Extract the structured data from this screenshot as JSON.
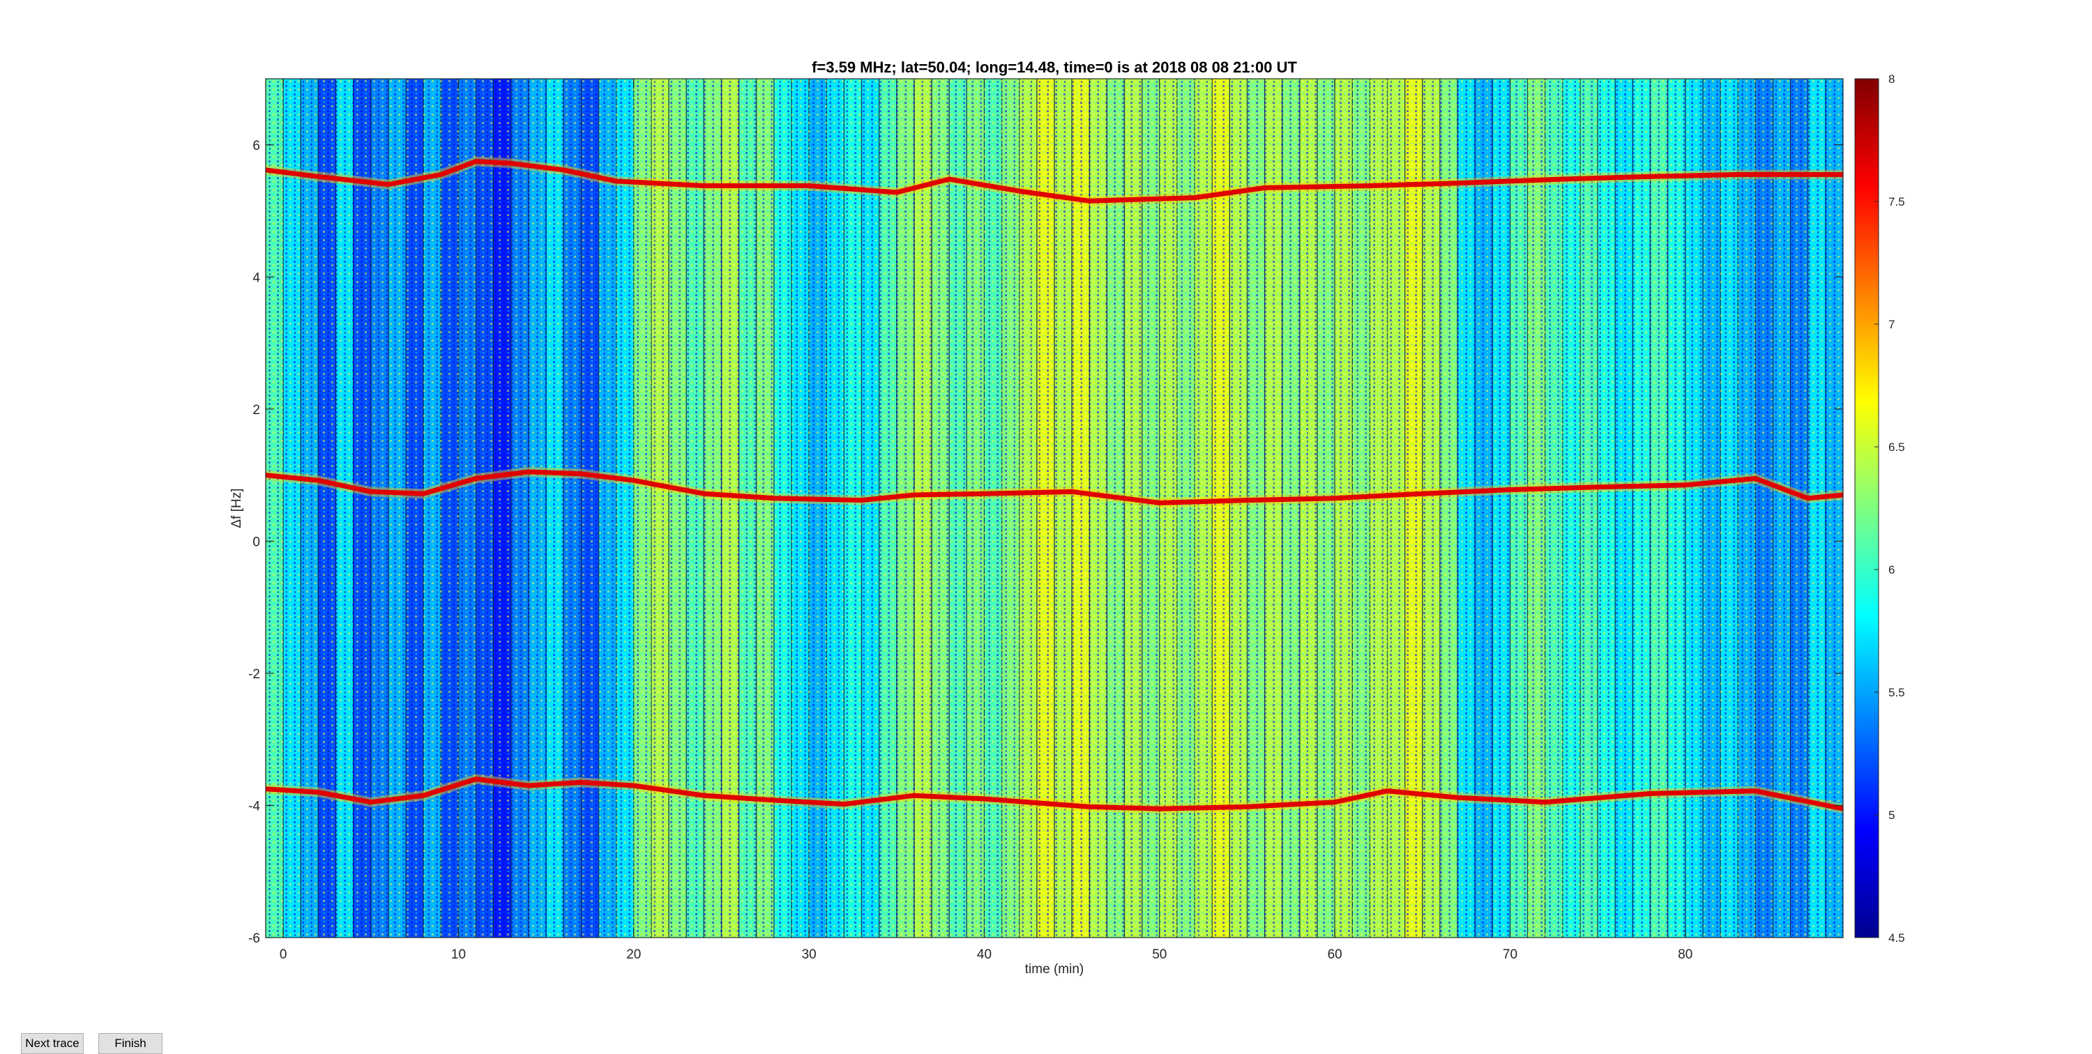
{
  "window": {
    "buttons": {
      "next_trace": "Next trace",
      "finish": "Finish"
    }
  },
  "chart_data": {
    "type": "heatmap",
    "title": "f=3.59 MHz;  lat=50.04; long=14.48, time=0 is at 2018 08 08 21:00 UT",
    "xlabel": "time (min)",
    "ylabel": "Δf [Hz]",
    "xlim": [
      -1,
      89
    ],
    "ylim": [
      -6,
      7
    ],
    "xticks": [
      0,
      10,
      20,
      30,
      40,
      50,
      60,
      70,
      80
    ],
    "yticks": [
      -6,
      -4,
      -2,
      0,
      2,
      4,
      6
    ],
    "colorbar": {
      "clim": [
        4.5,
        8
      ],
      "ticks": [
        4.5,
        5,
        5.5,
        6,
        6.5,
        7,
        7.5,
        8
      ],
      "tick_labels": [
        "4.5",
        "5",
        "5.5",
        "6",
        "6.5",
        "7",
        "7.5",
        "8"
      ],
      "colormap": "jet"
    },
    "traces": [
      {
        "name": "upper",
        "x": [
          -1,
          2,
          6,
          9,
          11,
          13,
          16,
          19,
          24,
          30,
          35,
          38,
          42,
          46,
          52,
          56,
          62,
          67,
          73,
          78,
          83,
          89
        ],
        "y": [
          5.62,
          5.52,
          5.4,
          5.55,
          5.75,
          5.72,
          5.62,
          5.45,
          5.38,
          5.38,
          5.28,
          5.48,
          5.3,
          5.15,
          5.2,
          5.35,
          5.38,
          5.42,
          5.48,
          5.52,
          5.55,
          5.55
        ]
      },
      {
        "name": "middle",
        "x": [
          -1,
          2,
          5,
          8,
          11,
          14,
          17,
          20,
          24,
          28,
          33,
          36,
          40,
          45,
          50,
          55,
          60,
          65,
          70,
          75,
          80,
          84,
          87,
          89
        ],
        "y": [
          1.0,
          0.92,
          0.75,
          0.72,
          0.95,
          1.05,
          1.02,
          0.92,
          0.72,
          0.65,
          0.62,
          0.7,
          0.72,
          0.75,
          0.58,
          0.62,
          0.65,
          0.72,
          0.78,
          0.82,
          0.85,
          0.95,
          0.65,
          0.7
        ]
      },
      {
        "name": "lower",
        "x": [
          -1,
          2,
          5,
          8,
          11,
          14,
          17,
          20,
          24,
          28,
          32,
          36,
          40,
          46,
          50,
          55,
          60,
          63,
          67,
          72,
          78,
          84,
          89
        ],
        "y": [
          -3.75,
          -3.8,
          -3.95,
          -3.85,
          -3.6,
          -3.7,
          -3.65,
          -3.7,
          -3.85,
          -3.92,
          -3.98,
          -3.85,
          -3.9,
          -4.02,
          -4.05,
          -4.02,
          -3.95,
          -3.78,
          -3.88,
          -3.95,
          -3.82,
          -3.78,
          -4.05
        ]
      }
    ],
    "columns": [
      {
        "x": -0.5,
        "level": 0.45
      },
      {
        "x": 0.5,
        "level": 0.35
      },
      {
        "x": 1.5,
        "level": 0.3
      },
      {
        "x": 2.5,
        "level": 0.2
      },
      {
        "x": 3.5,
        "level": 0.35
      },
      {
        "x": 4.5,
        "level": 0.2
      },
      {
        "x": 5.5,
        "level": 0.25
      },
      {
        "x": 6.5,
        "level": 0.3
      },
      {
        "x": 7.5,
        "level": 0.2
      },
      {
        "x": 8.5,
        "level": 0.3
      },
      {
        "x": 9.5,
        "level": 0.2
      },
      {
        "x": 10.5,
        "level": 0.25
      },
      {
        "x": 11.5,
        "level": 0.2
      },
      {
        "x": 12.5,
        "level": 0.15
      },
      {
        "x": 13.5,
        "level": 0.25
      },
      {
        "x": 14.5,
        "level": 0.3
      },
      {
        "x": 15.5,
        "level": 0.35
      },
      {
        "x": 16.5,
        "level": 0.25
      },
      {
        "x": 17.5,
        "level": 0.2
      },
      {
        "x": 18.5,
        "level": 0.3
      },
      {
        "x": 19.5,
        "level": 0.35
      },
      {
        "x": 20.5,
        "level": 0.5
      },
      {
        "x": 21.5,
        "level": 0.55
      },
      {
        "x": 22.5,
        "level": 0.5
      },
      {
        "x": 23.5,
        "level": 0.45
      },
      {
        "x": 24.5,
        "level": 0.5
      },
      {
        "x": 25.5,
        "level": 0.55
      },
      {
        "x": 26.5,
        "level": 0.45
      },
      {
        "x": 27.5,
        "level": 0.5
      },
      {
        "x": 28.5,
        "level": 0.4
      },
      {
        "x": 29.5,
        "level": 0.35
      },
      {
        "x": 30.5,
        "level": 0.3
      },
      {
        "x": 31.5,
        "level": 0.35
      },
      {
        "x": 32.5,
        "level": 0.4
      },
      {
        "x": 33.5,
        "level": 0.35
      },
      {
        "x": 34.5,
        "level": 0.45
      },
      {
        "x": 35.5,
        "level": 0.5
      },
      {
        "x": 36.5,
        "level": 0.55
      },
      {
        "x": 37.5,
        "level": 0.5
      },
      {
        "x": 38.5,
        "level": 0.45
      },
      {
        "x": 39.5,
        "level": 0.5
      },
      {
        "x": 40.5,
        "level": 0.45
      },
      {
        "x": 41.5,
        "level": 0.5
      },
      {
        "x": 42.5,
        "level": 0.55
      },
      {
        "x": 43.5,
        "level": 0.6
      },
      {
        "x": 44.5,
        "level": 0.55
      },
      {
        "x": 45.5,
        "level": 0.6
      },
      {
        "x": 46.5,
        "level": 0.55
      },
      {
        "x": 47.5,
        "level": 0.5
      },
      {
        "x": 48.5,
        "level": 0.55
      },
      {
        "x": 49.5,
        "level": 0.5
      },
      {
        "x": 50.5,
        "level": 0.55
      },
      {
        "x": 51.5,
        "level": 0.5
      },
      {
        "x": 52.5,
        "level": 0.55
      },
      {
        "x": 53.5,
        "level": 0.6
      },
      {
        "x": 54.5,
        "level": 0.55
      },
      {
        "x": 55.5,
        "level": 0.5
      },
      {
        "x": 56.5,
        "level": 0.55
      },
      {
        "x": 57.5,
        "level": 0.5
      },
      {
        "x": 58.5,
        "level": 0.55
      },
      {
        "x": 59.5,
        "level": 0.5
      },
      {
        "x": 60.5,
        "level": 0.55
      },
      {
        "x": 61.5,
        "level": 0.5
      },
      {
        "x": 62.5,
        "level": 0.55
      },
      {
        "x": 63.5,
        "level": 0.55
      },
      {
        "x": 64.5,
        "level": 0.6
      },
      {
        "x": 65.5,
        "level": 0.55
      },
      {
        "x": 66.5,
        "level": 0.5
      },
      {
        "x": 67.5,
        "level": 0.35
      },
      {
        "x": 68.5,
        "level": 0.3
      },
      {
        "x": 69.5,
        "level": 0.35
      },
      {
        "x": 70.5,
        "level": 0.45
      },
      {
        "x": 71.5,
        "level": 0.5
      },
      {
        "x": 72.5,
        "level": 0.45
      },
      {
        "x": 73.5,
        "level": 0.4
      },
      {
        "x": 74.5,
        "level": 0.45
      },
      {
        "x": 75.5,
        "level": 0.4
      },
      {
        "x": 76.5,
        "level": 0.35
      },
      {
        "x": 77.5,
        "level": 0.4
      },
      {
        "x": 78.5,
        "level": 0.45
      },
      {
        "x": 79.5,
        "level": 0.4
      },
      {
        "x": 80.5,
        "level": 0.35
      },
      {
        "x": 81.5,
        "level": 0.3
      },
      {
        "x": 82.5,
        "level": 0.35
      },
      {
        "x": 83.5,
        "level": 0.3
      },
      {
        "x": 84.5,
        "level": 0.25
      },
      {
        "x": 85.5,
        "level": 0.3
      },
      {
        "x": 86.5,
        "level": 0.25
      },
      {
        "x": 87.5,
        "level": 0.35
      },
      {
        "x": 88.5,
        "level": 0.3
      }
    ]
  }
}
